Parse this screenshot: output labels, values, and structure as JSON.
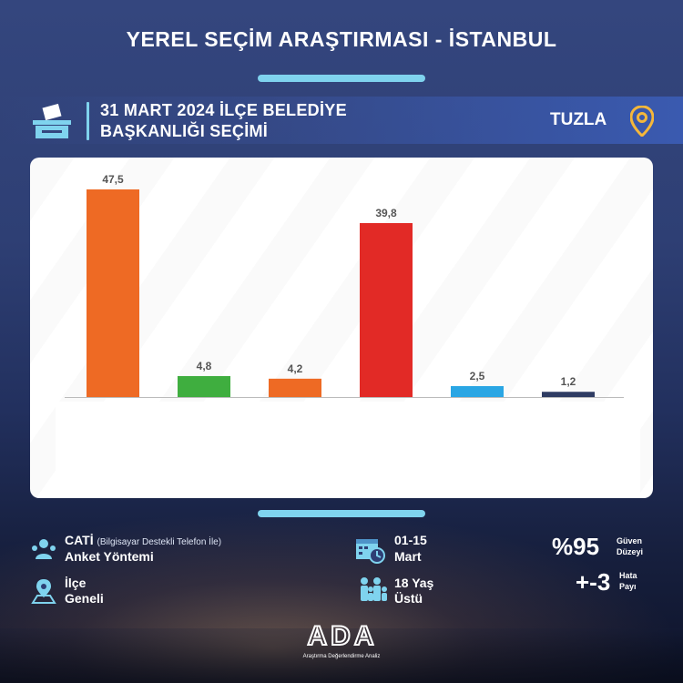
{
  "header": {
    "title": "YEREL SEÇİM ARAŞTIRMASI - İSTANBUL",
    "subtitle_line1": "31 MART 2024 İLÇE BELEDİYE",
    "subtitle_line2": "BAŞKANLIĞI SEÇİMİ",
    "district": "TUZLA"
  },
  "chart_data": {
    "type": "bar",
    "categories": [
      "",
      "",
      "",
      "",
      "",
      ""
    ],
    "values": [
      47.5,
      4.8,
      4.2,
      39.8,
      2.5,
      1.2
    ],
    "value_labels": [
      "47,5",
      "4,8",
      "4,2",
      "39,8",
      "2,5",
      "1,2"
    ],
    "colors": [
      "#ee6a24",
      "#3fae3f",
      "#ee6a24",
      "#e22a26",
      "#2aa6e4",
      "#2f3c63"
    ],
    "ylim": [
      0,
      50
    ],
    "grid": false,
    "legend": "none"
  },
  "footer": {
    "method_title": "CATİ",
    "method_note": "(Bilgisayar Destekli Telefon İle)",
    "method_label": "Anket Yöntemi",
    "scope_line1": "İlçe",
    "scope_line2": "Geneli",
    "date_line1": "01-15",
    "date_line2": "Mart",
    "age_line1": "18 Yaş",
    "age_line2": "Üstü",
    "confidence_value": "%95",
    "confidence_label1": "Güven",
    "confidence_label2": "Düzeyi",
    "margin_value": "+-3",
    "margin_label1": "Hata",
    "margin_label2": "Payı",
    "logo_text": "ADA",
    "logo_subtitle": "Araştırma Değerlendirme Analiz"
  },
  "colors": {
    "accent": "#7fd3ee",
    "pin": "#f5b73a"
  },
  "icons": [
    "ballot-box-icon",
    "location-pin-icon",
    "people-icon",
    "map-icon",
    "calendar-clock-icon",
    "family-icon"
  ]
}
